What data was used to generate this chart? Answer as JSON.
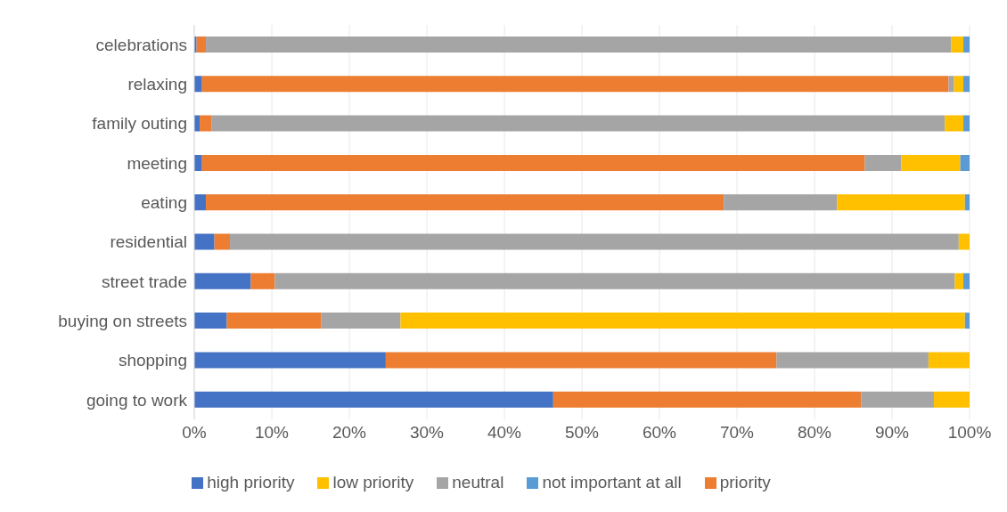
{
  "chart_data": {
    "type": "bar",
    "orientation": "horizontal",
    "stacked": true,
    "categories": [
      "celebrations",
      "relaxing",
      "family outing",
      "meeting",
      "eating",
      "residential",
      "street trade",
      "buying on streets",
      "shopping",
      "going to work"
    ],
    "series": [
      {
        "name": "high priority",
        "color": "#4472c4",
        "values": [
          0.3,
          1.0,
          0.7,
          1.0,
          1.5,
          2.6,
          7.3,
          4.2,
          24.7,
          46.3
        ]
      },
      {
        "name": "priority",
        "color": "#ed7d31",
        "values": [
          1.2,
          96.3,
          1.5,
          85.5,
          66.8,
          2.0,
          3.1,
          12.2,
          50.4,
          39.7
        ]
      },
      {
        "name": "neutral",
        "color": "#a5a5a5",
        "values": [
          96.1,
          0.7,
          94.6,
          4.7,
          14.6,
          94.0,
          87.7,
          10.2,
          19.6,
          9.4
        ]
      },
      {
        "name": "low priority",
        "color": "#ffc000",
        "values": [
          1.6,
          1.2,
          2.4,
          7.6,
          16.5,
          1.4,
          1.1,
          72.8,
          5.3,
          4.6
        ]
      },
      {
        "name": "not important at all",
        "color": "#5b9bd5",
        "values": [
          0.8,
          0.8,
          0.8,
          1.2,
          0.6,
          0,
          0.8,
          0.6,
          0,
          0
        ]
      }
    ],
    "xlim": [
      0,
      100
    ],
    "xticks": [
      {
        "value": 0,
        "label": "0%"
      },
      {
        "value": 10,
        "label": "10%"
      },
      {
        "value": 20,
        "label": "20%"
      },
      {
        "value": 30,
        "label": "30%"
      },
      {
        "value": 40,
        "label": "40%"
      },
      {
        "value": 50,
        "label": "50%"
      },
      {
        "value": 60,
        "label": "60%"
      },
      {
        "value": 70,
        "label": "70%"
      },
      {
        "value": 80,
        "label": "80%"
      },
      {
        "value": 90,
        "label": "90%"
      },
      {
        "value": 100,
        "label": "100%"
      }
    ],
    "grid": "x",
    "legend": "bottom"
  }
}
